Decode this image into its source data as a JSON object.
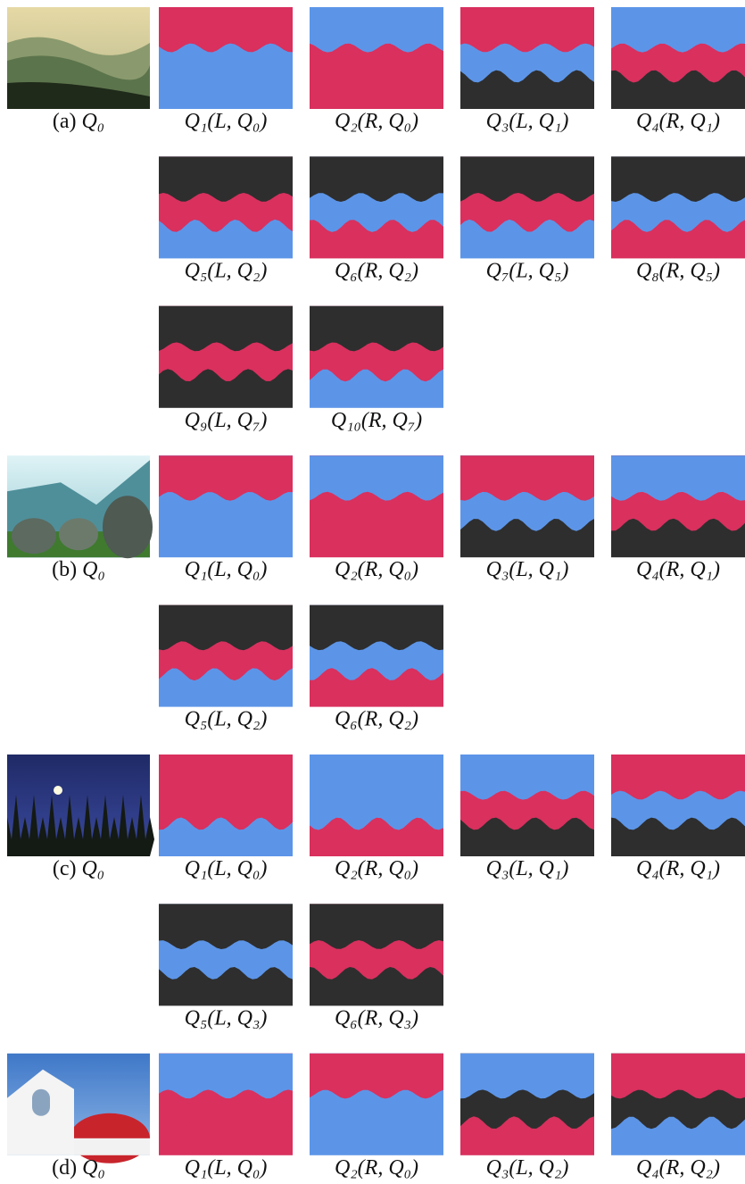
{
  "groups": [
    {
      "label": "(a)",
      "source": "Q₀",
      "rows": [
        [
          "Q₁(L, Q₀)",
          "Q₂(R, Q₀)",
          "Q₃(L, Q₁)",
          "Q₄(R, Q₁)"
        ],
        [
          "Q₅(L, Q₂)",
          "Q₆(R, Q₂)",
          "Q₇(L, Q₅)",
          "Q₈(R, Q₅)"
        ],
        [
          "Q₉(L, Q₇)",
          "Q₁₀(R, Q₇)"
        ]
      ]
    },
    {
      "label": "(b)",
      "source": "Q₀",
      "rows": [
        [
          "Q₁(L, Q₀)",
          "Q₂(R, Q₀)",
          "Q₃(L, Q₁)",
          "Q₄(R, Q₁)"
        ],
        [
          "Q₅(L, Q₂)",
          "Q₆(R, Q₂)"
        ]
      ]
    },
    {
      "label": "(c)",
      "source": "Q₀",
      "rows": [
        [
          "Q₁(L, Q₀)",
          "Q₂(R, Q₀)",
          "Q₃(L, Q₁)",
          "Q₄(R, Q₁)"
        ],
        [
          "Q₅(L, Q₃)",
          "Q₆(R, Q₃)"
        ]
      ]
    },
    {
      "label": "(d)",
      "source": "Q₀",
      "rows": [
        [
          "Q₁(L, Q₀)",
          "Q₂(R, Q₀)",
          "Q₃(L, Q₂)",
          "Q₄(R, Q₂)"
        ]
      ]
    }
  ]
}
